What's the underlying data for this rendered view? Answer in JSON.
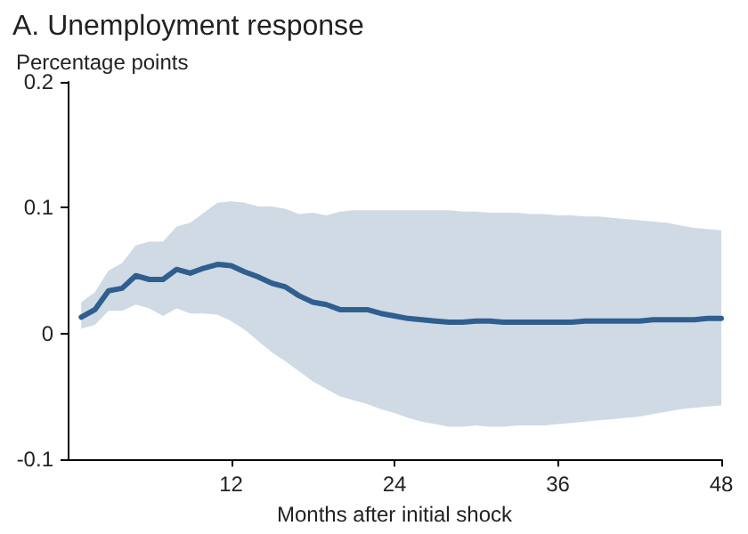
{
  "chart_data": {
    "type": "line",
    "title": "A. Unemployment response",
    "ylabel": "Percentage points",
    "xlabel": "Months after initial shock",
    "x": [
      1,
      2,
      3,
      4,
      5,
      6,
      7,
      8,
      9,
      10,
      11,
      12,
      13,
      14,
      15,
      16,
      17,
      18,
      19,
      20,
      21,
      22,
      23,
      24,
      25,
      26,
      27,
      28,
      29,
      30,
      31,
      32,
      33,
      34,
      35,
      36,
      37,
      38,
      39,
      40,
      41,
      42,
      43,
      44,
      45,
      46,
      47,
      48
    ],
    "series": [
      {
        "color": "#2f5f8f",
        "values": [
          0.013,
          0.019,
          0.034,
          0.036,
          0.046,
          0.043,
          0.043,
          0.051,
          0.048,
          0.052,
          0.055,
          0.054,
          0.049,
          0.045,
          0.04,
          0.037,
          0.03,
          0.025,
          0.023,
          0.019,
          0.019,
          0.019,
          0.016,
          0.014,
          0.012,
          0.011,
          0.01,
          0.009,
          0.009,
          0.01,
          0.01,
          0.009,
          0.009,
          0.009,
          0.009,
          0.009,
          0.009,
          0.01,
          0.01,
          0.01,
          0.01,
          0.01,
          0.011,
          0.011,
          0.011,
          0.011,
          0.012,
          0.012
        ],
        "lower": [
          0.004,
          0.007,
          0.018,
          0.018,
          0.023,
          0.02,
          0.014,
          0.02,
          0.016,
          0.016,
          0.015,
          0.01,
          0.003,
          -0.006,
          -0.015,
          -0.022,
          -0.03,
          -0.038,
          -0.044,
          -0.05,
          -0.053,
          -0.056,
          -0.06,
          -0.063,
          -0.067,
          -0.07,
          -0.072,
          -0.074,
          -0.074,
          -0.073,
          -0.074,
          -0.074,
          -0.073,
          -0.073,
          -0.073,
          -0.072,
          -0.071,
          -0.07,
          -0.069,
          -0.068,
          -0.067,
          -0.066,
          -0.064,
          -0.062,
          -0.06,
          -0.059,
          -0.058,
          -0.057
        ],
        "upper": [
          0.025,
          0.033,
          0.05,
          0.056,
          0.07,
          0.073,
          0.073,
          0.085,
          0.088,
          0.096,
          0.104,
          0.105,
          0.104,
          0.101,
          0.101,
          0.099,
          0.095,
          0.096,
          0.094,
          0.097,
          0.098,
          0.098,
          0.098,
          0.098,
          0.098,
          0.098,
          0.098,
          0.098,
          0.097,
          0.097,
          0.096,
          0.096,
          0.096,
          0.095,
          0.095,
          0.094,
          0.094,
          0.093,
          0.093,
          0.092,
          0.091,
          0.09,
          0.089,
          0.088,
          0.086,
          0.084,
          0.083,
          0.082
        ]
      }
    ],
    "xlim": [
      0,
      48
    ],
    "xticks": [
      12,
      24,
      36,
      48
    ],
    "ylim": [
      -0.1,
      0.2
    ],
    "yticks": [
      -0.1,
      0,
      0.1,
      0.2
    ],
    "grid": false,
    "marker": "none",
    "line_style": "solid"
  }
}
